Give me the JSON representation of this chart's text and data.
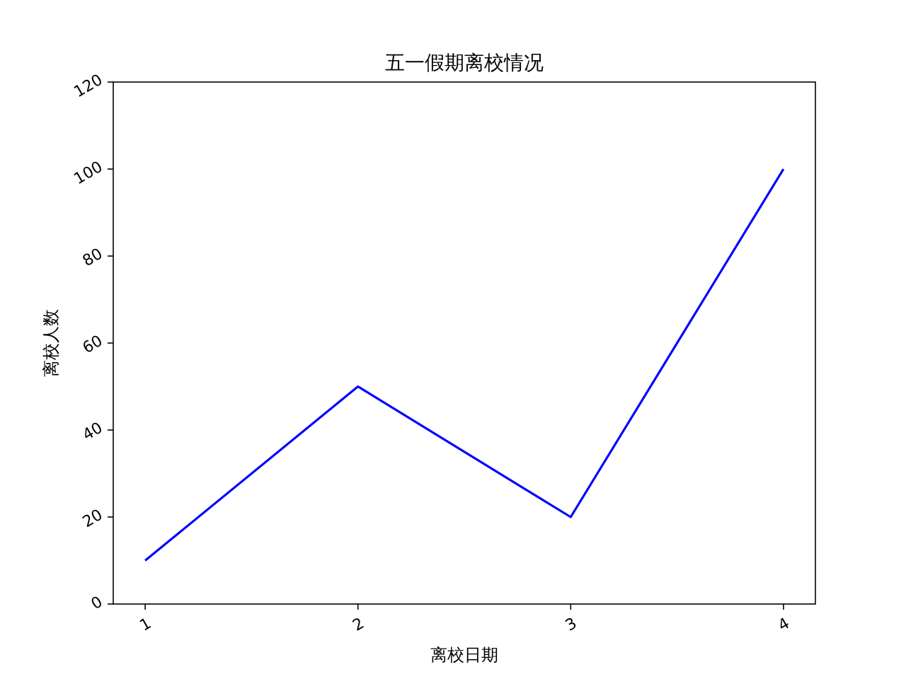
{
  "chart_data": {
    "type": "line",
    "title": "五一假期离校情况",
    "xlabel": "离校日期",
    "ylabel": "离校人数",
    "x": [
      1,
      2,
      3,
      4
    ],
    "values": [
      10,
      50,
      20,
      100
    ],
    "color": "#0000ff",
    "xlim": [
      0.85,
      4.15
    ],
    "xticks": [
      1,
      2,
      3,
      4
    ],
    "ylim": [
      0,
      120
    ],
    "yticks": [
      0,
      20,
      40,
      60,
      80,
      100,
      120
    ]
  }
}
